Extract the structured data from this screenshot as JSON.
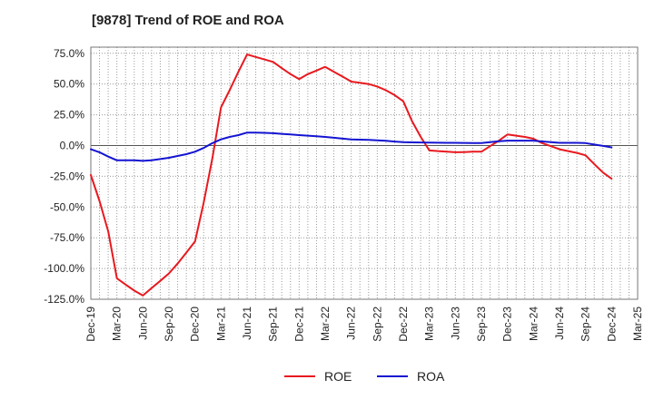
{
  "title": "[9878]  Trend of ROE and ROA",
  "chart_data": {
    "type": "line",
    "title": "[9878]  Trend of ROE and ROA",
    "xlabel": "",
    "ylabel": "",
    "x": [
      "Dec-19",
      "Mar-20",
      "Jun-20",
      "Sep-20",
      "Dec-20",
      "Mar-21",
      "Jun-21",
      "Sep-21",
      "Dec-21",
      "Mar-22",
      "Jun-22",
      "Sep-22",
      "Dec-22",
      "Mar-23",
      "Jun-23",
      "Sep-23",
      "Dec-23",
      "Mar-24",
      "Jun-24",
      "Sep-24",
      "Dec-24",
      "Mar-25"
    ],
    "x_tick_labels": [
      "Dec-19",
      "Mar-20",
      "Jun-20",
      "Sep-20",
      "Dec-20",
      "Mar-21",
      "Jun-21",
      "Sep-21",
      "Dec-21",
      "Mar-22",
      "Jun-22",
      "Sep-22",
      "Dec-22",
      "Mar-23",
      "Jun-23",
      "Sep-23",
      "Dec-23",
      "Mar-24",
      "Jun-24",
      "Sep-24",
      "Dec-24",
      "Mar-25"
    ],
    "y_ticks": [
      75,
      50,
      25,
      0,
      -25,
      -50,
      -75,
      -100,
      -125
    ],
    "y_tick_labels": [
      "75.0%",
      "50.0%",
      "25.0%",
      "0.0%",
      "-25.0%",
      "-50.0%",
      "-75.0%",
      "-100.0%",
      "-125.0%"
    ],
    "ylim": [
      -125,
      80
    ],
    "grid": true,
    "legend_position": "bottom-center",
    "series": [
      {
        "name": "ROE",
        "color": "#e8191f",
        "points": [
          [
            0,
            -24
          ],
          [
            0.33,
            -45
          ],
          [
            0.67,
            -70
          ],
          [
            1,
            -108
          ],
          [
            1.33,
            -113
          ],
          [
            1.67,
            -118
          ],
          [
            2,
            -122
          ],
          [
            2.33,
            -116
          ],
          [
            2.67,
            -110
          ],
          [
            3,
            -104
          ],
          [
            3.33,
            -96
          ],
          [
            3.67,
            -87
          ],
          [
            4,
            -78
          ],
          [
            4.33,
            -47
          ],
          [
            4.67,
            -10
          ],
          [
            5,
            31
          ],
          [
            5.33,
            45
          ],
          [
            5.67,
            60
          ],
          [
            6,
            74
          ],
          [
            6.33,
            72
          ],
          [
            6.67,
            70
          ],
          [
            7,
            68
          ],
          [
            7.33,
            63
          ],
          [
            7.67,
            58
          ],
          [
            8,
            54
          ],
          [
            8.33,
            58
          ],
          [
            8.67,
            61
          ],
          [
            9,
            64
          ],
          [
            9.33,
            60
          ],
          [
            9.67,
            56
          ],
          [
            10,
            52
          ],
          [
            10.33,
            51
          ],
          [
            10.67,
            50
          ],
          [
            11,
            48
          ],
          [
            11.33,
            45
          ],
          [
            11.67,
            41
          ],
          [
            12,
            36
          ],
          [
            12.33,
            20
          ],
          [
            12.67,
            7
          ],
          [
            13,
            -4
          ],
          [
            13.33,
            -4.5
          ],
          [
            13.67,
            -5
          ],
          [
            14,
            -5.5
          ],
          [
            14.33,
            -5.3
          ],
          [
            14.67,
            -5
          ],
          [
            15,
            -5
          ],
          [
            15.33,
            -0.5
          ],
          [
            15.67,
            4
          ],
          [
            16,
            9
          ],
          [
            16.33,
            8
          ],
          [
            16.67,
            7
          ],
          [
            17,
            5.5
          ],
          [
            17.33,
            2
          ],
          [
            17.67,
            -0.5
          ],
          [
            18,
            -3
          ],
          [
            18.33,
            -4.5
          ],
          [
            18.67,
            -6
          ],
          [
            19,
            -8
          ],
          [
            19.33,
            -15
          ],
          [
            19.67,
            -22
          ],
          [
            20,
            -27
          ]
        ]
      },
      {
        "name": "ROA",
        "color": "#1414d2",
        "points": [
          [
            0,
            -3
          ],
          [
            0.33,
            -5.5
          ],
          [
            0.67,
            -9
          ],
          [
            1,
            -12
          ],
          [
            1.33,
            -12
          ],
          [
            1.67,
            -12
          ],
          [
            2,
            -12.5
          ],
          [
            2.33,
            -12
          ],
          [
            2.67,
            -11
          ],
          [
            3,
            -10
          ],
          [
            3.33,
            -8.5
          ],
          [
            3.67,
            -7
          ],
          [
            4,
            -5
          ],
          [
            4.33,
            -2
          ],
          [
            4.67,
            2
          ],
          [
            5,
            5
          ],
          [
            5.33,
            7
          ],
          [
            5.67,
            8.5
          ],
          [
            6,
            10.5
          ],
          [
            6.33,
            10.5
          ],
          [
            6.67,
            10.3
          ],
          [
            7,
            10
          ],
          [
            7.33,
            9.5
          ],
          [
            7.67,
            9
          ],
          [
            8,
            8.5
          ],
          [
            8.33,
            8
          ],
          [
            8.67,
            7.5
          ],
          [
            9,
            7
          ],
          [
            9.33,
            6.3
          ],
          [
            9.67,
            5.6
          ],
          [
            10,
            5
          ],
          [
            10.33,
            4.8
          ],
          [
            10.67,
            4.6
          ],
          [
            11,
            4.3
          ],
          [
            11.33,
            3.8
          ],
          [
            11.67,
            3.2
          ],
          [
            12,
            2.8
          ],
          [
            12.33,
            2.6
          ],
          [
            12.67,
            2.5
          ],
          [
            13,
            2.4
          ],
          [
            13.33,
            2.3
          ],
          [
            13.67,
            2.2
          ],
          [
            14,
            2.2
          ],
          [
            14.33,
            2.1
          ],
          [
            14.67,
            2
          ],
          [
            15,
            2
          ],
          [
            15.33,
            2.8
          ],
          [
            15.67,
            3.5
          ],
          [
            16,
            4
          ],
          [
            16.33,
            4
          ],
          [
            16.67,
            4
          ],
          [
            17,
            4
          ],
          [
            17.33,
            3.3
          ],
          [
            17.67,
            2.7
          ],
          [
            18,
            2.2
          ],
          [
            18.33,
            2.2
          ],
          [
            18.67,
            2.2
          ],
          [
            19,
            2
          ],
          [
            19.33,
            0.8
          ],
          [
            19.67,
            -0.3
          ],
          [
            20,
            -1.5
          ]
        ]
      }
    ]
  }
}
